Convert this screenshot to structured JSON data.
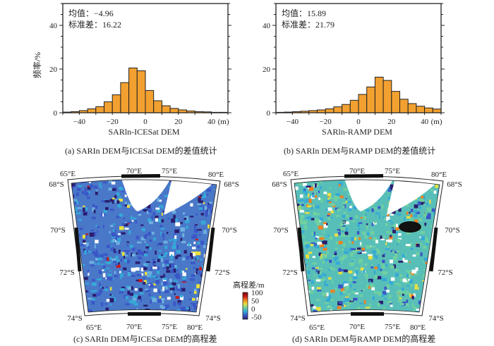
{
  "chart_data": [
    {
      "type": "bar",
      "panel": "a",
      "caption": "(a) SARIn DEM与ICESat DEM的差值统计",
      "xlabel": "SARln-ICESat DEM",
      "xunit": "(m)",
      "ylabel": "频率/%",
      "xlim": [
        -50,
        50
      ],
      "ylim": [
        0,
        50
      ],
      "xticks": [
        -40,
        -20,
        0,
        20,
        40
      ],
      "yticks": [
        0,
        20,
        40
      ],
      "bin_width": 5,
      "bin_starts": [
        -50,
        -45,
        -40,
        -35,
        -30,
        -25,
        -20,
        -15,
        -10,
        -5,
        0,
        5,
        10,
        15,
        20,
        25,
        30,
        35,
        40,
        45
      ],
      "values": [
        0.3,
        0.5,
        1,
        1.8,
        2.8,
        5,
        8.2,
        13.8,
        20.5,
        19.2,
        10.2,
        5.5,
        3.2,
        2,
        1.3,
        0.8,
        0.5,
        0.4,
        0.2,
        0.2
      ],
      "stats": [
        "均值：−4.96",
        "标准差：16.22"
      ],
      "bar_color": "#f2a030"
    },
    {
      "type": "bar",
      "panel": "b",
      "caption": "(b) SARIn DEM与RAMP DEM的差值统计",
      "xlabel": "SARln-RAMP DEM",
      "xunit": "(m)",
      "ylabel": "频率/%",
      "xlim": [
        -50,
        50
      ],
      "ylim": [
        0,
        50
      ],
      "xticks": [
        -40,
        -20,
        0,
        20,
        40
      ],
      "yticks": [
        0,
        20,
        40
      ],
      "bin_width": 5,
      "bin_starts": [
        -50,
        -45,
        -40,
        -35,
        -30,
        -25,
        -20,
        -15,
        -10,
        -5,
        0,
        5,
        10,
        15,
        20,
        25,
        30,
        35,
        40,
        45
      ],
      "values": [
        0.2,
        0.3,
        0.5,
        0.7,
        1,
        1.3,
        1.8,
        2.7,
        3.8,
        5.7,
        8.4,
        11.8,
        16.3,
        14.8,
        9.8,
        6.2,
        4.2,
        3,
        2.2,
        1.7
      ],
      "stats": [
        "均值：15.89",
        "标准差：21.79"
      ],
      "bar_color": "#f2a030"
    }
  ],
  "maps": [
    {
      "panel": "c",
      "caption": "(c) SARIn DEM与ICESat DEM的高程差"
    },
    {
      "panel": "d",
      "caption": "(d) SARIn DEM与RAMP DEM的高程差"
    }
  ],
  "map_labels": {
    "lon": [
      "65°E",
      "70°E",
      "75°E",
      "80°E"
    ],
    "lat": [
      "68°S",
      "70°S",
      "72°S",
      "74°S"
    ]
  },
  "colorbar": {
    "title": "高程差/m",
    "ticks": [
      "100",
      "50",
      "0",
      "-50"
    ],
    "colors": [
      "#2b1d6e",
      "#3a57c8",
      "#35a8d8",
      "#6fd0a0",
      "#e8e040",
      "#f08020",
      "#c81818",
      "#7a0a0a"
    ]
  }
}
